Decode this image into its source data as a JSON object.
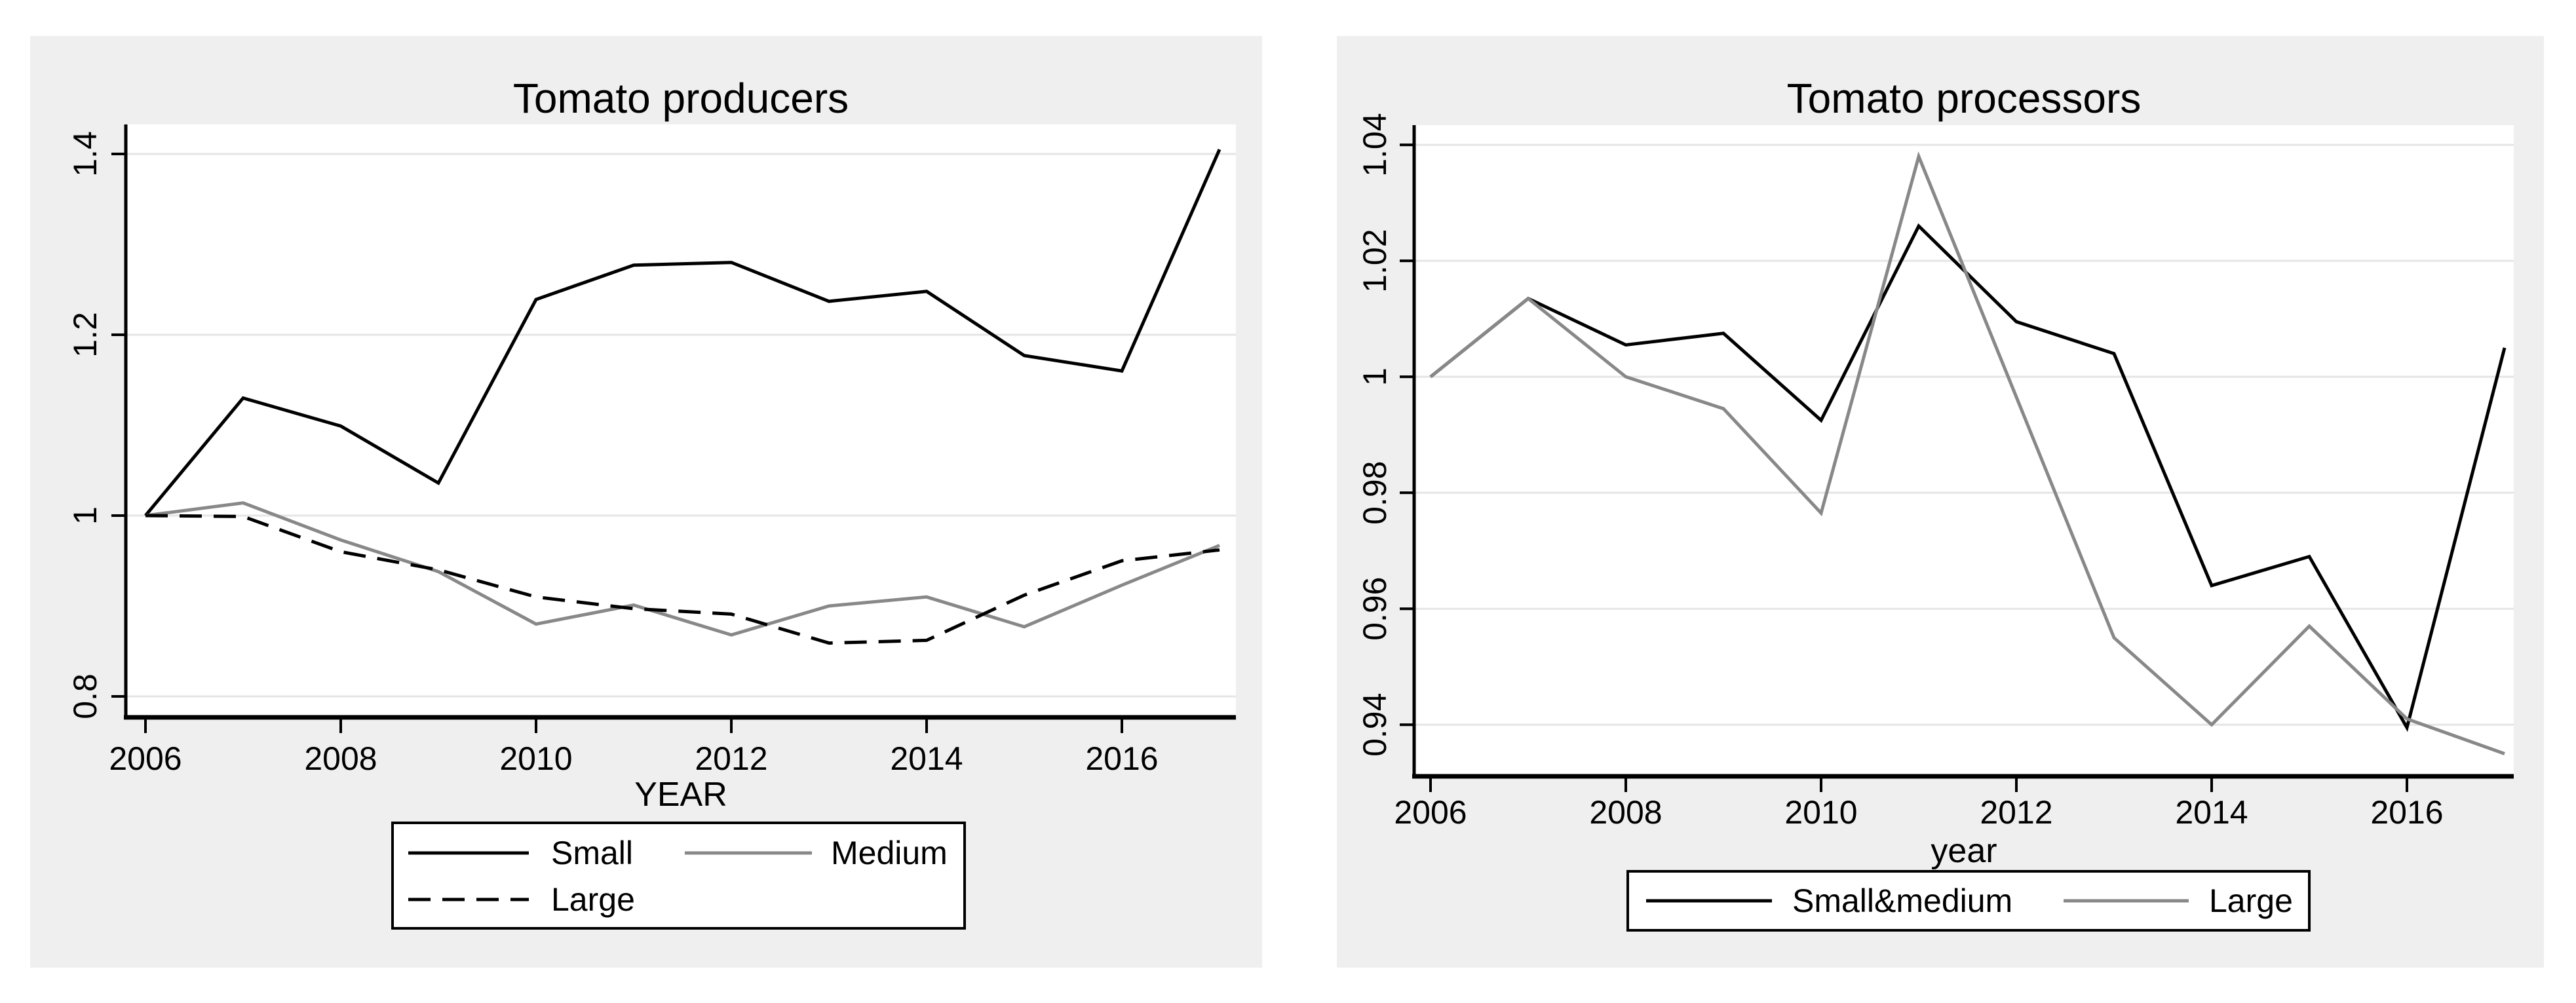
{
  "figure": {
    "background": "#ffffff",
    "panel_background": "#efefef",
    "plot_background": "#ffffff",
    "gridline_color": "#e5e5e5",
    "axis_color": "#000000",
    "text_color": "#000000"
  },
  "chart_data": [
    {
      "type": "line",
      "title": "Tomato producers",
      "xlabel": "YEAR",
      "ylabel": "",
      "x": [
        2006,
        2007,
        2008,
        2009,
        2010,
        2011,
        2012,
        2013,
        2014,
        2015,
        2016,
        2017
      ],
      "xticks": [
        2006,
        2008,
        2010,
        2012,
        2014,
        2016
      ],
      "yticks": [
        {
          "value": 0.8,
          "label": "0.8"
        },
        {
          "value": 1,
          "label": "1"
        },
        {
          "value": 1.2,
          "label": "1.2"
        },
        {
          "value": 1.4,
          "label": "1.4"
        }
      ],
      "ylim": [
        0.7768,
        1.4326
      ],
      "grid": true,
      "legend_position": "below",
      "series": [
        {
          "name": "Small",
          "color": "#000000",
          "dash": false,
          "values": [
            1.0,
            1.13,
            1.099,
            1.036,
            1.239,
            1.277,
            1.28,
            1.237,
            1.248,
            1.177,
            1.16,
            1.405
          ]
        },
        {
          "name": "Medium",
          "color": "#888888",
          "dash": false,
          "values": [
            1.0,
            1.014,
            0.973,
            0.938,
            0.88,
            0.901,
            0.868,
            0.9,
            0.91,
            0.877,
            0.923,
            0.967
          ]
        },
        {
          "name": "Large",
          "color": "#000000",
          "dash": true,
          "values": [
            1.0,
            0.999,
            0.96,
            0.94,
            0.91,
            0.897,
            0.891,
            0.859,
            0.862,
            0.912,
            0.95,
            0.962
          ]
        }
      ],
      "legend_rows": [
        [
          "Small",
          "Medium"
        ],
        [
          "Large"
        ]
      ]
    },
    {
      "type": "line",
      "title": "Tomato processors",
      "xlabel": "year",
      "ylabel": "",
      "x": [
        2006,
        2007,
        2008,
        2009,
        2010,
        2011,
        2012,
        2013,
        2014,
        2015,
        2016,
        2017
      ],
      "xticks": [
        2006,
        2008,
        2010,
        2012,
        2014,
        2016
      ],
      "yticks": [
        {
          "value": 0.94,
          "label": "0.94"
        },
        {
          "value": 0.96,
          "label": "0.96"
        },
        {
          "value": 0.98,
          "label": "0.98"
        },
        {
          "value": 1,
          "label": "1"
        },
        {
          "value": 1.02,
          "label": "1.02"
        },
        {
          "value": 1.04,
          "label": "1.04"
        }
      ],
      "ylim": [
        0.9311,
        1.0434
      ],
      "grid": true,
      "legend_position": "below",
      "series": [
        {
          "name": "Small&medium",
          "color": "#000000",
          "dash": false,
          "values": [
            1.0,
            1.0135,
            1.0055,
            1.0075,
            0.9925,
            1.026,
            1.0095,
            1.004,
            0.964,
            0.969,
            0.9395,
            1.005
          ]
        },
        {
          "name": "Large",
          "color": "#888888",
          "dash": false,
          "values": [
            1.0,
            1.0135,
            1.0,
            0.9945,
            0.9765,
            1.038,
            0.9965,
            0.955,
            0.94,
            0.957,
            0.941,
            0.935
          ]
        }
      ],
      "legend_rows": [
        [
          "Small&medium",
          "Large"
        ]
      ]
    }
  ]
}
